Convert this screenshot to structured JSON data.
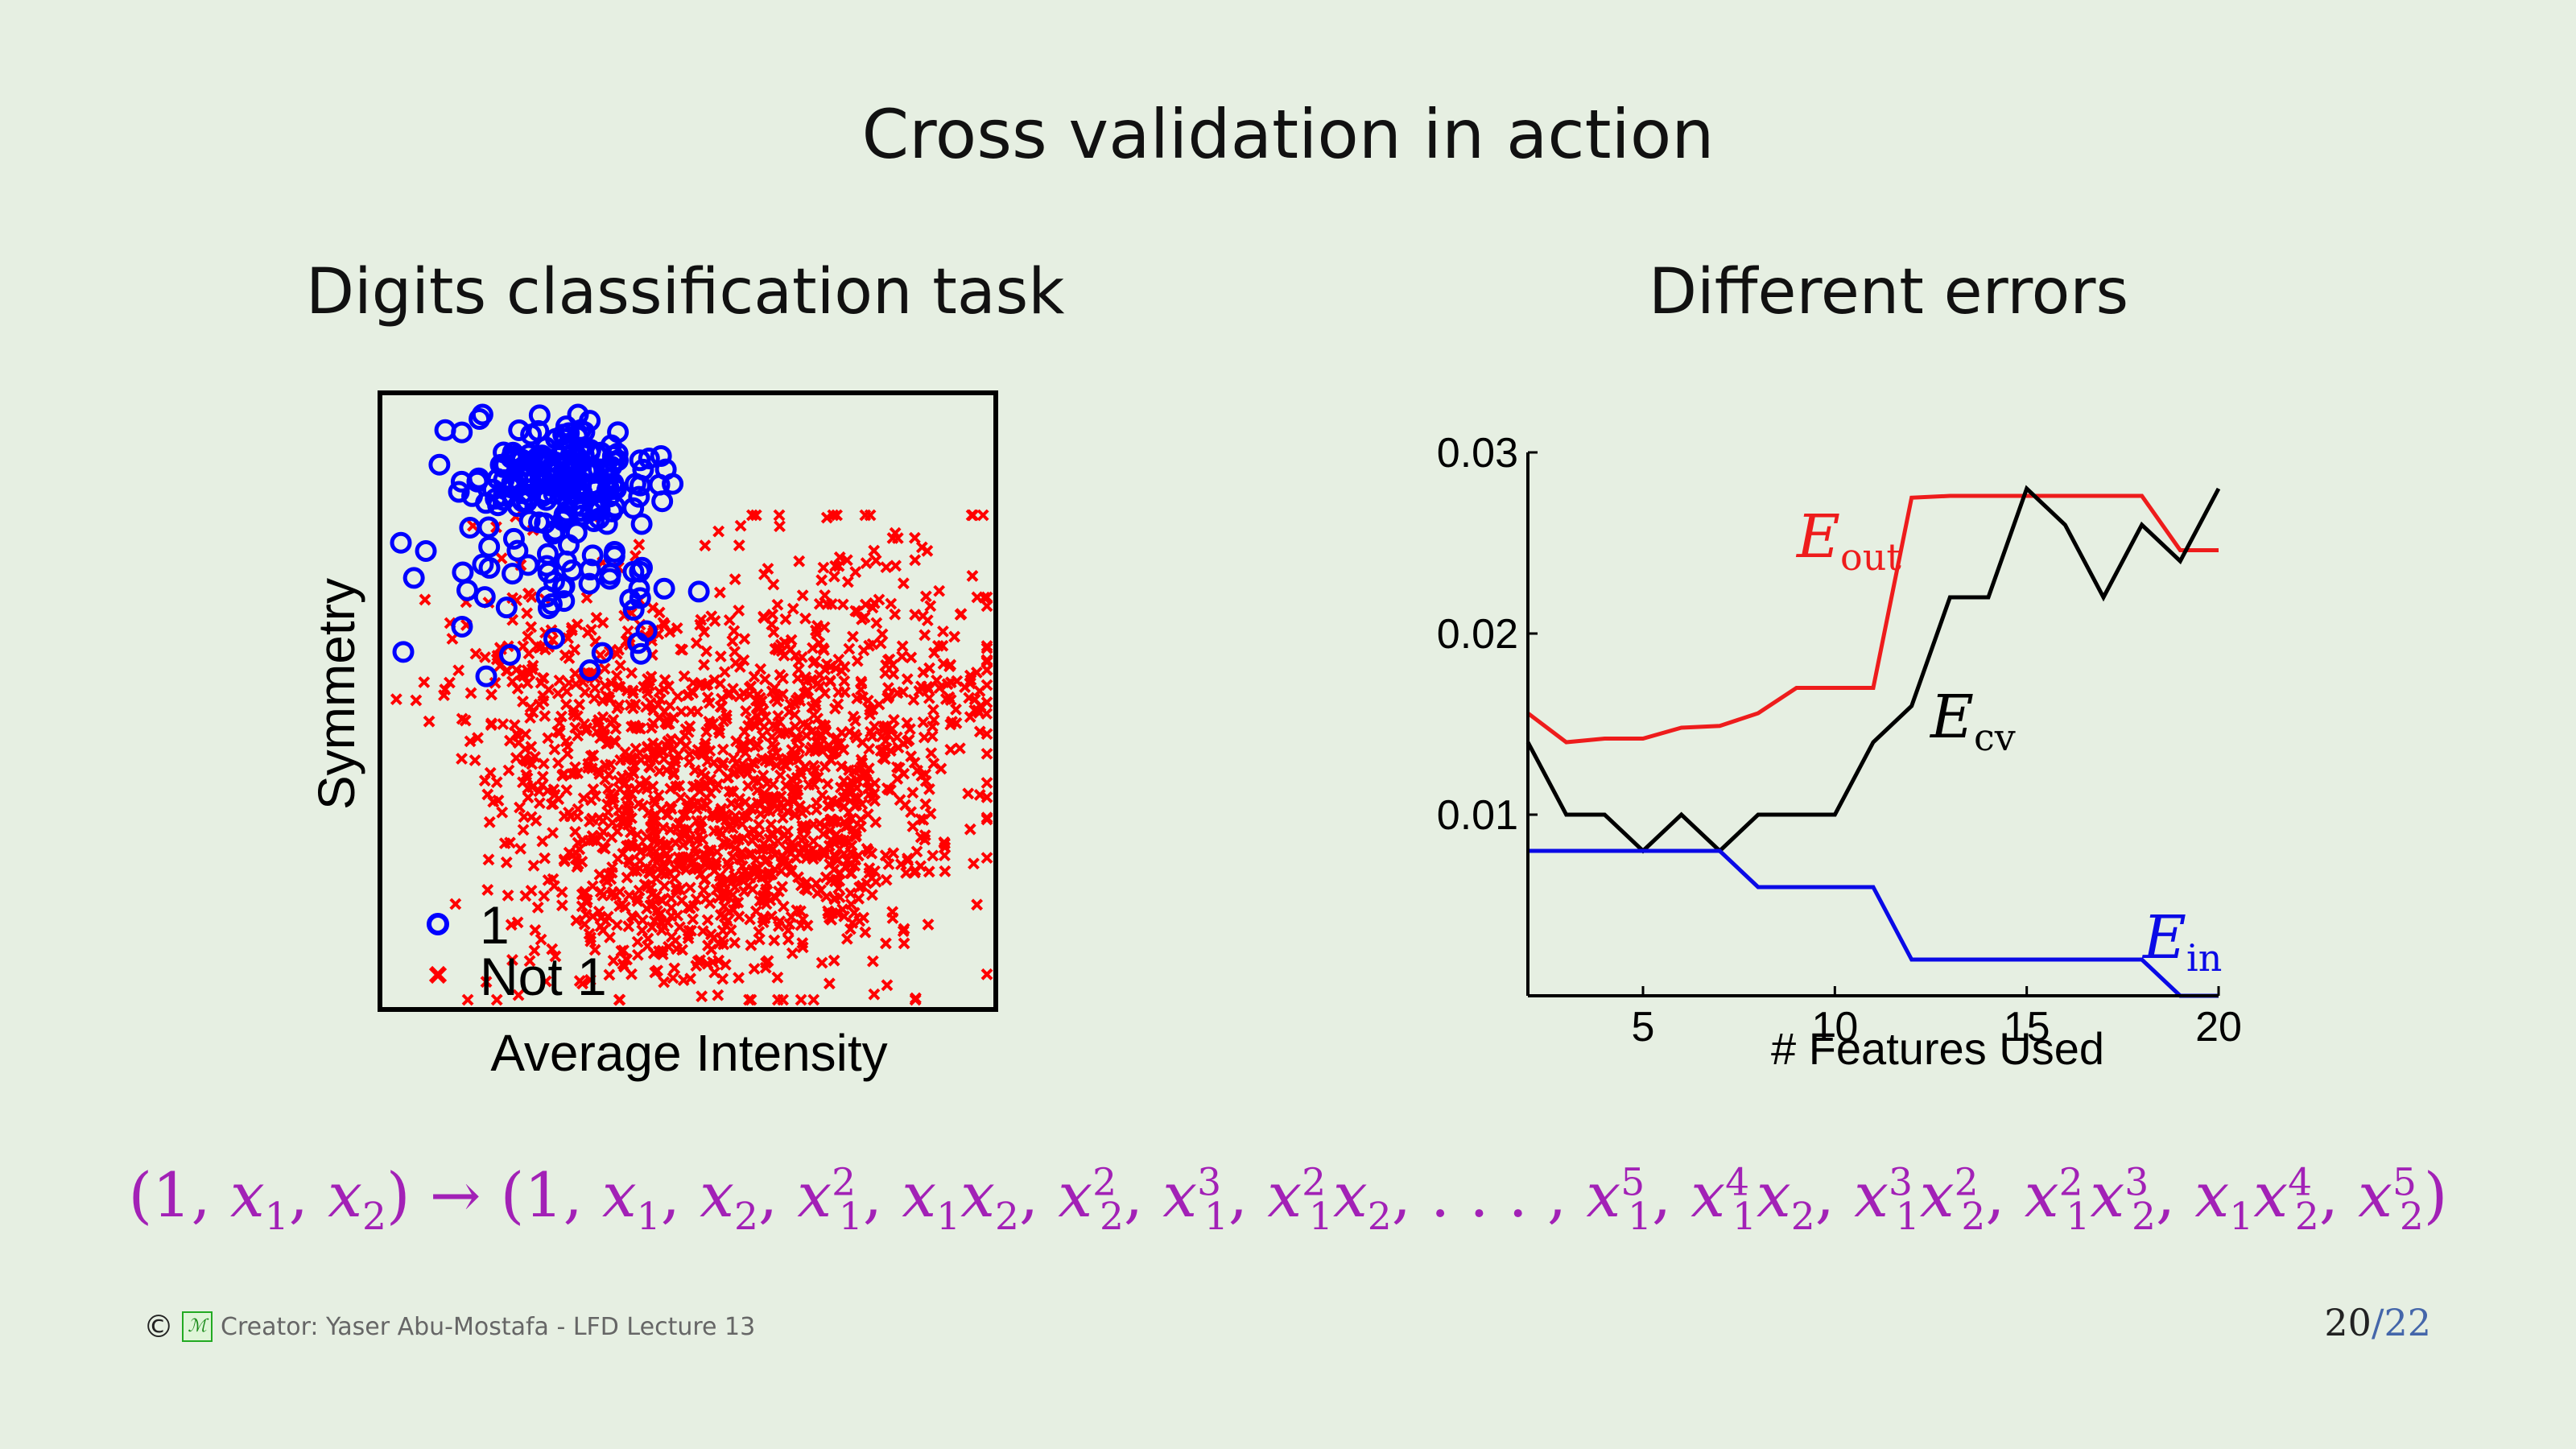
{
  "slide": {
    "title": "Cross validation in action",
    "left_title": "Digits classification task",
    "right_title": "Different errors"
  },
  "scatter": {
    "xlabel": "Average Intensity",
    "ylabel": "Symmetry",
    "legend": [
      "1",
      "Not 1"
    ],
    "colors": {
      "one": "#0000ff",
      "not_one": "#ff0000"
    }
  },
  "chart_data": {
    "type": "line",
    "xlabel": "# Features Used",
    "ylabel": "",
    "xlim": [
      2,
      20
    ],
    "ylim": [
      0,
      0.03
    ],
    "xticks": [
      5,
      10,
      15,
      20
    ],
    "yticks": [
      0.01,
      0.02,
      0.03
    ],
    "ytick_labels": [
      "0.01",
      "0.02",
      "0.03"
    ],
    "series": [
      {
        "name": "E_out",
        "label_main": "E",
        "label_sub": "out",
        "color": "#ee1c1c",
        "x": [
          2,
          3,
          4,
          5,
          6,
          7,
          8,
          9,
          10,
          11,
          12,
          13,
          14,
          15,
          16,
          17,
          18,
          19,
          20
        ],
        "y": [
          0.0156,
          0.014,
          0.0142,
          0.0142,
          0.0148,
          0.0149,
          0.0156,
          0.017,
          0.017,
          0.017,
          0.0275,
          0.0276,
          0.0276,
          0.0276,
          0.0276,
          0.0276,
          0.0276,
          0.0246,
          0.0246
        ]
      },
      {
        "name": "E_cv",
        "label_main": "E",
        "label_sub": "cv",
        "color": "#000000",
        "x": [
          2,
          3,
          4,
          5,
          6,
          7,
          8,
          9,
          10,
          11,
          12,
          13,
          14,
          15,
          16,
          17,
          18,
          19,
          20
        ],
        "y": [
          0.014,
          0.01,
          0.01,
          0.008,
          0.01,
          0.008,
          0.01,
          0.01,
          0.01,
          0.014,
          0.016,
          0.022,
          0.022,
          0.028,
          0.026,
          0.022,
          0.026,
          0.024,
          0.028
        ]
      },
      {
        "name": "E_in",
        "label_main": "E",
        "label_sub": "in",
        "color": "#0a0ae6",
        "x": [
          2,
          3,
          4,
          5,
          6,
          7,
          8,
          9,
          10,
          11,
          12,
          13,
          14,
          15,
          16,
          17,
          18,
          19,
          20
        ],
        "y": [
          0.008,
          0.008,
          0.008,
          0.008,
          0.008,
          0.008,
          0.006,
          0.006,
          0.006,
          0.006,
          0.002,
          0.002,
          0.002,
          0.002,
          0.002,
          0.002,
          0.002,
          0.0,
          0.0
        ]
      }
    ]
  },
  "formula": {
    "lhs_text": "(1, x1, x2) → (1, x1, x2, x1^2, x1x2, x2^2, x1^3, x1^2x2, . . . , x1^5, x1^4x2, x1^3x2^2, x1^2x2^3, x1x2^4, x2^5)"
  },
  "footer": {
    "copyright_symbol": "©",
    "logo_text": "AM L",
    "creator": "Creator: Yaser Abu-Mostafa - LFD Lecture 13",
    "page": "20",
    "slash": "/",
    "total": "22"
  }
}
